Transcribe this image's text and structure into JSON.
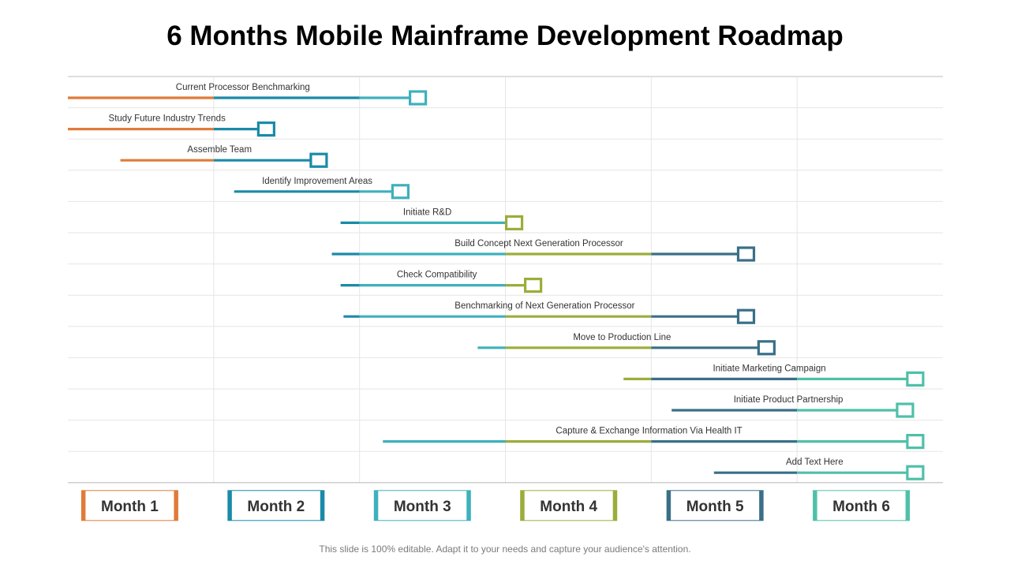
{
  "title": "6 Months Mobile Mainframe Development Roadmap",
  "footer": "This slide is 100% editable. Adapt it to your needs and capture your audience's attention.",
  "colors": {
    "month_1": "#e07b39",
    "month_2": "#1a8aa8",
    "month_3": "#3fb0bd",
    "month_4": "#9bad3a",
    "month_5": "#3a6f87",
    "month_6": "#4fc0a8",
    "grid": "#e6e6e6",
    "axis": "#bdbdbd"
  },
  "chart_data": {
    "type": "gantt",
    "x_range": [
      0,
      6
    ],
    "months": [
      "Month 1",
      "Month 2",
      "Month 3",
      "Month 4",
      "Month 5",
      "Month 6"
    ],
    "tasks": [
      {
        "label": "Current Processor Benchmarking",
        "start": 0.0,
        "end": 2.4
      },
      {
        "label": "Study Future Industry Trends",
        "start": 0.0,
        "end": 1.36
      },
      {
        "label": "Assemble Team",
        "start": 0.36,
        "end": 1.72
      },
      {
        "label": "Identify Improvement Areas",
        "start": 1.14,
        "end": 2.28
      },
      {
        "label": "Initiate R&D",
        "start": 1.87,
        "end": 3.06
      },
      {
        "label": "Build Concept Next Generation Processor",
        "start": 1.81,
        "end": 4.65
      },
      {
        "label": "Check Compatibility",
        "start": 1.87,
        "end": 3.19
      },
      {
        "label": "Benchmarking of Next Generation Processor",
        "start": 1.89,
        "end": 4.65
      },
      {
        "label": "Move to Production Line",
        "start": 2.81,
        "end": 4.79
      },
      {
        "label": "Initiate Marketing Campaign",
        "start": 3.81,
        "end": 5.81
      },
      {
        "label": "Initiate Product Partnership",
        "start": 4.14,
        "end": 5.74
      },
      {
        "label": "Capture & Exchange Information Via Health IT",
        "start": 2.16,
        "end": 5.81
      },
      {
        "label": "Add Text Here",
        "start": 4.43,
        "end": 5.81
      }
    ]
  }
}
